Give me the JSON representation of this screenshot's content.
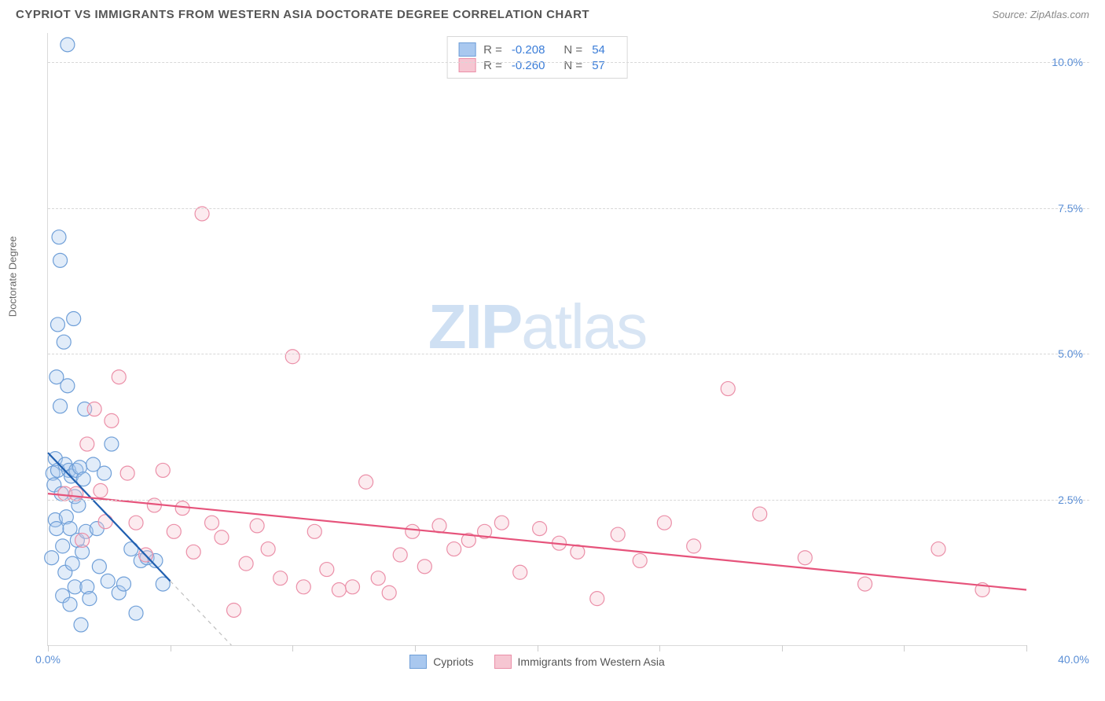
{
  "header": {
    "title": "CYPRIOT VS IMMIGRANTS FROM WESTERN ASIA DOCTORATE DEGREE CORRELATION CHART",
    "source": "Source: ZipAtlas.com"
  },
  "chart": {
    "type": "scatter",
    "watermark_a": "ZIP",
    "watermark_b": "atlas",
    "y_label": "Doctorate Degree",
    "xlim": [
      0,
      40
    ],
    "ylim": [
      0,
      10.5
    ],
    "x_ticks": [
      0,
      5,
      10,
      15,
      20,
      25,
      30,
      35,
      40
    ],
    "x_tick_labels": {
      "0": "0.0%",
      "40": "40.0%"
    },
    "y_ticks": [
      2.5,
      5.0,
      7.5,
      10.0
    ],
    "y_tick_labels": [
      "2.5%",
      "5.0%",
      "7.5%",
      "10.0%"
    ],
    "grid_color": "#d8d8d8",
    "background_color": "#ffffff",
    "marker_radius": 9,
    "marker_opacity": 0.35,
    "line_width": 2.2,
    "series": [
      {
        "key": "cypriots",
        "label": "Cypriots",
        "color_fill": "#a9c8ef",
        "color_stroke": "#6f9fd8",
        "line_color": "#1f5fb0",
        "r_value": "-0.208",
        "n_value": "54",
        "trend": {
          "x1": 0,
          "y1": 3.3,
          "x2": 5.0,
          "y2": 1.1
        },
        "trend_ext": {
          "x1": 5.0,
          "y1": 1.1,
          "x2": 7.5,
          "y2": 0.0
        },
        "points": [
          [
            0.15,
            1.5
          ],
          [
            0.2,
            2.95
          ],
          [
            0.25,
            2.75
          ],
          [
            0.3,
            3.2
          ],
          [
            0.3,
            2.15
          ],
          [
            0.35,
            4.6
          ],
          [
            0.35,
            2.0
          ],
          [
            0.4,
            5.5
          ],
          [
            0.4,
            3.0
          ],
          [
            0.45,
            7.0
          ],
          [
            0.5,
            6.6
          ],
          [
            0.5,
            4.1
          ],
          [
            0.55,
            2.6
          ],
          [
            0.6,
            1.7
          ],
          [
            0.6,
            0.85
          ],
          [
            0.65,
            5.2
          ],
          [
            0.7,
            3.1
          ],
          [
            0.7,
            1.25
          ],
          [
            0.75,
            2.2
          ],
          [
            0.8,
            10.3
          ],
          [
            0.8,
            4.45
          ],
          [
            0.85,
            3.0
          ],
          [
            0.9,
            2.0
          ],
          [
            0.9,
            0.7
          ],
          [
            0.95,
            2.9
          ],
          [
            1.0,
            1.4
          ],
          [
            1.05,
            5.6
          ],
          [
            1.1,
            2.55
          ],
          [
            1.1,
            1.0
          ],
          [
            1.15,
            3.0
          ],
          [
            1.2,
            1.8
          ],
          [
            1.25,
            2.4
          ],
          [
            1.3,
            3.05
          ],
          [
            1.35,
            0.35
          ],
          [
            1.4,
            1.6
          ],
          [
            1.45,
            2.85
          ],
          [
            1.5,
            4.05
          ],
          [
            1.55,
            1.95
          ],
          [
            1.6,
            1.0
          ],
          [
            1.7,
            0.8
          ],
          [
            1.85,
            3.1
          ],
          [
            2.0,
            2.0
          ],
          [
            2.1,
            1.35
          ],
          [
            2.3,
            2.95
          ],
          [
            2.45,
            1.1
          ],
          [
            2.6,
            3.45
          ],
          [
            2.9,
            0.9
          ],
          [
            3.1,
            1.05
          ],
          [
            3.4,
            1.65
          ],
          [
            3.6,
            0.55
          ],
          [
            3.8,
            1.45
          ],
          [
            4.05,
            1.5
          ],
          [
            4.4,
            1.45
          ],
          [
            4.7,
            1.05
          ]
        ]
      },
      {
        "key": "western_asia",
        "label": "Immigrants from Western Asia",
        "color_fill": "#f6c6d2",
        "color_stroke": "#eb8fa8",
        "line_color": "#e6537b",
        "r_value": "-0.260",
        "n_value": "57",
        "trend": {
          "x1": 0,
          "y1": 2.6,
          "x2": 40,
          "y2": 0.95
        },
        "points": [
          [
            0.7,
            2.6
          ],
          [
            1.15,
            2.6
          ],
          [
            1.4,
            1.8
          ],
          [
            1.6,
            3.45
          ],
          [
            1.9,
            4.05
          ],
          [
            2.15,
            2.65
          ],
          [
            2.35,
            2.12
          ],
          [
            2.6,
            3.85
          ],
          [
            2.9,
            4.6
          ],
          [
            3.25,
            2.95
          ],
          [
            3.6,
            2.1
          ],
          [
            4.0,
            1.55
          ],
          [
            4.35,
            2.4
          ],
          [
            4.7,
            3.0
          ],
          [
            5.15,
            1.95
          ],
          [
            5.5,
            2.35
          ],
          [
            5.95,
            1.6
          ],
          [
            6.3,
            7.4
          ],
          [
            6.7,
            2.1
          ],
          [
            7.1,
            1.85
          ],
          [
            7.6,
            0.6
          ],
          [
            8.1,
            1.4
          ],
          [
            8.55,
            2.05
          ],
          [
            9.0,
            1.65
          ],
          [
            9.5,
            1.15
          ],
          [
            10.0,
            4.95
          ],
          [
            10.45,
            1.0
          ],
          [
            10.9,
            1.95
          ],
          [
            11.4,
            1.3
          ],
          [
            11.9,
            0.95
          ],
          [
            12.45,
            1.0
          ],
          [
            13.0,
            2.8
          ],
          [
            13.5,
            1.15
          ],
          [
            13.95,
            0.9
          ],
          [
            14.4,
            1.55
          ],
          [
            14.9,
            1.95
          ],
          [
            15.4,
            1.35
          ],
          [
            16.0,
            2.05
          ],
          [
            16.6,
            1.65
          ],
          [
            17.2,
            1.8
          ],
          [
            17.85,
            1.95
          ],
          [
            18.55,
            2.1
          ],
          [
            19.3,
            1.25
          ],
          [
            20.1,
            2.0
          ],
          [
            20.9,
            1.75
          ],
          [
            21.65,
            1.6
          ],
          [
            22.45,
            0.8
          ],
          [
            23.3,
            1.9
          ],
          [
            24.2,
            1.45
          ],
          [
            25.2,
            2.1
          ],
          [
            26.4,
            1.7
          ],
          [
            27.8,
            4.4
          ],
          [
            29.1,
            2.25
          ],
          [
            30.95,
            1.5
          ],
          [
            33.4,
            1.05
          ],
          [
            36.4,
            1.65
          ],
          [
            38.2,
            0.95
          ]
        ]
      }
    ],
    "legend_bottom": [
      "Cypriots",
      "Immigrants from Western Asia"
    ]
  }
}
